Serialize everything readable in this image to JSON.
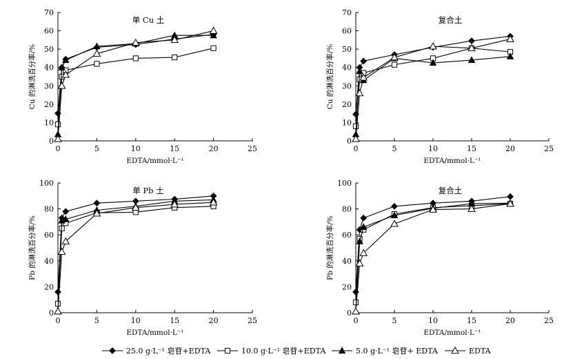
{
  "colors": {
    "ink": "#000000",
    "background": "#ffffff",
    "hollow_fill": "#ffffff"
  },
  "legend": {
    "placement": "bottom",
    "items": [
      {
        "label": "25.0 g·L⁻¹ 皂苷+EDTA",
        "marker": "filled-diamond"
      },
      {
        "label": "10.0 g·L⁻¹ 皂苷+EDTA",
        "marker": "hollow-square"
      },
      {
        "label": "5.0 g·L⁻¹ 皂苷+ EDTA",
        "marker": "filled-triangle"
      },
      {
        "label": "EDTA",
        "marker": "hollow-triangle"
      }
    ]
  },
  "chart_data": [
    {
      "type": "line",
      "title": "单 Cu 土",
      "xlabel": "EDTA/mmol·L⁻¹",
      "ylabel": "Cu 的淋洗百分率/%",
      "xlim": [
        0,
        25
      ],
      "ylim": [
        0,
        70
      ],
      "xticks": [
        0,
        5,
        10,
        15,
        20,
        25
      ],
      "yticks": [
        0,
        10,
        20,
        30,
        40,
        50,
        60,
        70
      ],
      "grid": false,
      "series": [
        {
          "name": "25.0 g·L⁻¹ 皂苷+EDTA",
          "marker": "filled-diamond",
          "x": [
            0,
            0.5,
            1,
            5,
            10,
            15,
            20
          ],
          "y": [
            15,
            40,
            44.5,
            51,
            52.5,
            55.5,
            58
          ]
        },
        {
          "name": "10.0 g·L⁻¹ 皂苷+EDTA",
          "marker": "hollow-square",
          "x": [
            0,
            0.5,
            1,
            5,
            10,
            15,
            20
          ],
          "y": [
            9,
            35,
            38.5,
            42,
            45,
            45.5,
            50.5
          ]
        },
        {
          "name": "5.0 g·L⁻¹ 皂苷+ EDTA",
          "marker": "filled-triangle",
          "x": [
            0,
            0.5,
            1,
            5,
            10,
            15,
            20
          ],
          "y": [
            3.5,
            40,
            44,
            51.5,
            53,
            57.5,
            57.5
          ]
        },
        {
          "name": "EDTA",
          "marker": "hollow-triangle",
          "x": [
            0,
            0.5,
            1,
            5,
            10,
            15,
            20
          ],
          "y": [
            1,
            30,
            36,
            47.5,
            53.5,
            55,
            60
          ]
        }
      ]
    },
    {
      "type": "line",
      "title": "复合土",
      "xlabel": "EDTA/mmol·L⁻¹",
      "ylabel": "Cu 的淋洗百分率/%",
      "xlim": [
        0,
        25
      ],
      "ylim": [
        0,
        70
      ],
      "xticks": [
        0,
        5,
        10,
        15,
        20,
        25
      ],
      "yticks": [
        0,
        10,
        20,
        30,
        40,
        50,
        60,
        70
      ],
      "grid": false,
      "series": [
        {
          "name": "25.0 g·L⁻¹ 皂苷+EDTA",
          "marker": "filled-diamond",
          "x": [
            0,
            0.5,
            1,
            5,
            10,
            15,
            20
          ],
          "y": [
            14.5,
            40,
            43.5,
            47,
            51,
            54.5,
            57
          ]
        },
        {
          "name": "10.0 g·L⁻¹ 皂苷+EDTA",
          "marker": "hollow-square",
          "x": [
            0,
            0.5,
            1,
            5,
            10,
            15,
            20
          ],
          "y": [
            8,
            33.5,
            37,
            41.5,
            45,
            50.5,
            48.5
          ]
        },
        {
          "name": "5.0 g·L⁻¹ 皂苷+ EDTA",
          "marker": "filled-triangle",
          "x": [
            0,
            0.5,
            1,
            5,
            10,
            15,
            20
          ],
          "y": [
            3.5,
            38,
            33,
            45,
            42.5,
            44,
            46
          ]
        },
        {
          "name": "EDTA",
          "marker": "hollow-triangle",
          "x": [
            0,
            0.5,
            1,
            5,
            10,
            15,
            20
          ],
          "y": [
            1,
            26,
            34.5,
            45.5,
            51.5,
            50.5,
            55.5
          ]
        }
      ]
    },
    {
      "type": "line",
      "title": "单 Pb 土",
      "xlabel": "EDTA/mmol·L⁻¹",
      "ylabel": "Pb 的淋洗百分率/%",
      "xlim": [
        0,
        25
      ],
      "ylim": [
        0,
        100
      ],
      "xticks": [
        0,
        5,
        10,
        15,
        20,
        25
      ],
      "yticks": [
        0,
        20,
        40,
        60,
        80,
        100
      ],
      "grid": false,
      "series": [
        {
          "name": "25.0 g·L⁻¹ 皂苷+EDTA",
          "marker": "filled-diamond",
          "x": [
            0,
            0.5,
            1,
            5,
            10,
            15,
            20
          ],
          "y": [
            16,
            73,
            78,
            84.5,
            86,
            87.5,
            90
          ]
        },
        {
          "name": "10.0 g·L⁻¹ 皂苷+EDTA",
          "marker": "hollow-square",
          "x": [
            0,
            0.5,
            1,
            5,
            10,
            15,
            20
          ],
          "y": [
            7,
            65,
            69,
            77,
            77.5,
            81,
            82
          ]
        },
        {
          "name": "5.0 g·L⁻¹ 皂苷+ EDTA",
          "marker": "filled-triangle",
          "x": [
            0,
            0.5,
            1,
            5,
            10,
            15,
            20
          ],
          "y": [
            1,
            71,
            72,
            79,
            82,
            86,
            87
          ]
        },
        {
          "name": "EDTA",
          "marker": "hollow-triangle",
          "x": [
            0,
            0.5,
            1,
            5,
            10,
            15,
            20
          ],
          "y": [
            1,
            47,
            55,
            76.5,
            81,
            83.5,
            85
          ]
        }
      ]
    },
    {
      "type": "line",
      "title": "复合土",
      "xlabel": "EDTA/mmol·L⁻¹",
      "ylabel": "Pb 的淋洗百分率/%",
      "xlim": [
        0,
        25
      ],
      "ylim": [
        0,
        100
      ],
      "xticks": [
        0,
        5,
        10,
        15,
        20,
        25
      ],
      "yticks": [
        0,
        20,
        40,
        60,
        80,
        100
      ],
      "grid": false,
      "series": [
        {
          "name": "25.0 g·L⁻¹ 皂苷+EDTA",
          "marker": "filled-diamond",
          "x": [
            0,
            0.5,
            1,
            5,
            10,
            15,
            20
          ],
          "y": [
            16,
            64,
            73,
            82,
            84.5,
            86,
            89.5
          ]
        },
        {
          "name": "10.0 g·L⁻¹ 皂苷+EDTA",
          "marker": "hollow-square",
          "x": [
            0,
            0.5,
            1,
            5,
            10,
            15,
            20
          ],
          "y": [
            8,
            57,
            64,
            76,
            81,
            82.5,
            84
          ]
        },
        {
          "name": "5.0 g·L⁻¹ 皂苷+ EDTA",
          "marker": "filled-triangle",
          "x": [
            0,
            0.5,
            1,
            5,
            10,
            15,
            20
          ],
          "y": [
            1,
            55,
            66,
            75,
            80.5,
            84,
            84.5
          ]
        },
        {
          "name": "EDTA",
          "marker": "hollow-triangle",
          "x": [
            0,
            0.5,
            1,
            5,
            10,
            15,
            20
          ],
          "y": [
            1,
            38,
            46,
            68.5,
            79.5,
            80,
            84
          ]
        }
      ]
    }
  ]
}
